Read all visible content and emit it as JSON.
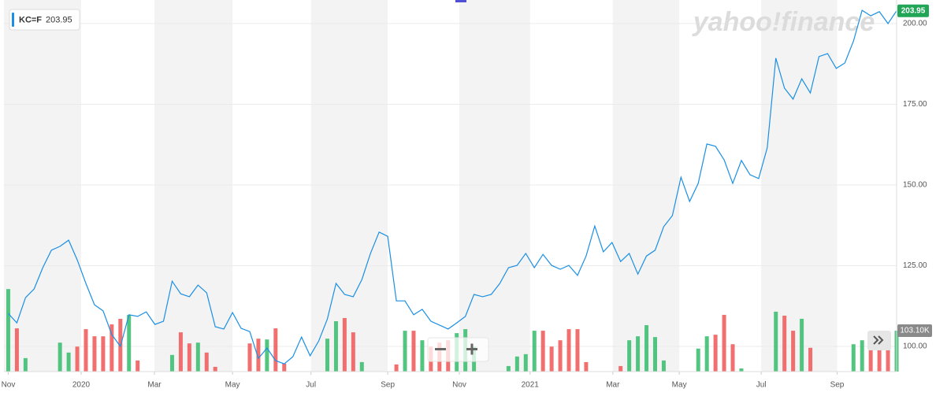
{
  "chart_data": {
    "type": "line",
    "series": [
      {
        "name": "KC=F",
        "color": "#1a8fe3",
        "values": [
          110.2,
          107.3,
          115.1,
          117.8,
          124.4,
          129.8,
          131.0,
          132.9,
          126.8,
          119.5,
          112.9,
          111.0,
          103.7,
          100.0,
          109.8,
          109.3,
          110.7,
          106.8,
          107.8,
          120.2,
          116.3,
          115.4,
          119.0,
          116.6,
          106.1,
          105.4,
          110.5,
          105.6,
          104.6,
          96.3,
          99.5,
          95.6,
          94.6,
          96.8,
          102.9,
          97.1,
          101.7,
          108.5,
          119.5,
          116.1,
          115.4,
          120.7,
          128.8,
          135.4,
          134.1,
          114.1,
          114.1,
          109.8,
          111.5,
          107.8,
          106.6,
          105.4,
          107.3,
          109.3,
          116.1,
          115.4,
          116.1,
          119.5,
          124.4,
          125.1,
          128.8,
          124.4,
          128.5,
          125.1,
          123.9,
          125.1,
          122.0,
          128.0,
          137.3,
          129.3,
          132.2,
          126.3,
          128.8,
          122.4,
          128.0,
          129.8,
          137.1,
          140.5,
          152.4,
          144.9,
          150.5,
          162.7,
          162.0,
          157.8,
          150.5,
          157.6,
          153.2,
          152.0,
          161.5,
          189.3,
          180.0,
          176.6,
          182.9,
          178.5,
          189.8,
          190.7,
          186.1,
          187.8,
          194.6,
          204.1,
          202.4,
          203.7,
          200.0,
          203.95
        ]
      }
    ],
    "volume": {
      "up_color": "#3fbf73",
      "down_color": "#ef5f5f",
      "lim": [
        0,
        250
      ],
      "values": [
        208,
        109,
        34,
        null,
        null,
        null,
        73,
        48,
        63,
        107,
        89,
        89,
        119,
        133,
        143,
        28,
        null,
        null,
        null,
        42,
        99,
        71,
        73,
        48,
        12,
        null,
        null,
        null,
        71,
        83,
        81,
        109,
        20,
        null,
        null,
        null,
        null,
        83,
        127,
        135,
        99,
        24,
        null,
        null,
        null,
        18,
        103,
        103,
        79,
        63,
        73,
        79,
        97,
        107,
        63,
        null,
        null,
        null,
        14,
        38,
        44,
        103,
        103,
        63,
        79,
        107,
        107,
        24,
        null,
        null,
        null,
        14,
        79,
        89,
        117,
        87,
        28,
        null,
        null,
        null,
        58,
        89,
        93,
        143,
        69,
        8,
        null,
        null,
        null,
        151,
        141,
        103,
        133,
        60,
        null,
        null,
        null,
        null,
        69,
        79,
        83,
        87,
        67,
        103.1
      ],
      "up": [
        true,
        false,
        true,
        null,
        null,
        null,
        true,
        true,
        false,
        false,
        false,
        false,
        false,
        false,
        true,
        false,
        null,
        null,
        null,
        true,
        false,
        false,
        true,
        false,
        false,
        null,
        null,
        null,
        false,
        false,
        true,
        false,
        false,
        null,
        null,
        null,
        null,
        true,
        true,
        false,
        false,
        true,
        null,
        null,
        null,
        false,
        true,
        false,
        true,
        false,
        false,
        false,
        true,
        true,
        true,
        null,
        null,
        null,
        true,
        true,
        true,
        true,
        false,
        false,
        false,
        false,
        false,
        false,
        null,
        null,
        null,
        false,
        true,
        true,
        true,
        true,
        true,
        null,
        null,
        null,
        true,
        true,
        false,
        false,
        false,
        true,
        null,
        null,
        null,
        true,
        false,
        false,
        true,
        false,
        null,
        null,
        null,
        null,
        true,
        true,
        false,
        false,
        false,
        true
      ],
      "last_label": "103.10K"
    },
    "xlim": [
      -0.5,
      103
    ],
    "xticks": [
      {
        "value": 0,
        "label": "Nov"
      },
      {
        "value": 8.45,
        "label": "2020"
      },
      {
        "value": 16.95,
        "label": "Mar"
      },
      {
        "value": 26.0,
        "label": "May"
      },
      {
        "value": 35.1,
        "label": "Jul"
      },
      {
        "value": 44.0,
        "label": "Sep"
      },
      {
        "value": 52.3,
        "label": "Nov"
      },
      {
        "value": 60.5,
        "label": "2021"
      },
      {
        "value": 70.1,
        "label": "Mar"
      },
      {
        "value": 77.8,
        "label": "May"
      },
      {
        "value": 87.3,
        "label": "Jul"
      },
      {
        "value": 96.1,
        "label": "Sep"
      }
    ],
    "ylim": [
      92.2,
      207.3
    ],
    "yticks": [
      {
        "value": 100,
        "label": "100.00"
      },
      {
        "value": 125,
        "label": "125.00"
      },
      {
        "value": 150,
        "label": "150.00"
      },
      {
        "value": 175,
        "label": "175.00"
      },
      {
        "value": 200,
        "label": "200.00"
      }
    ],
    "grid": true,
    "band_color": "#f3f3f3",
    "watermark": "yahoo!finance"
  }
}
